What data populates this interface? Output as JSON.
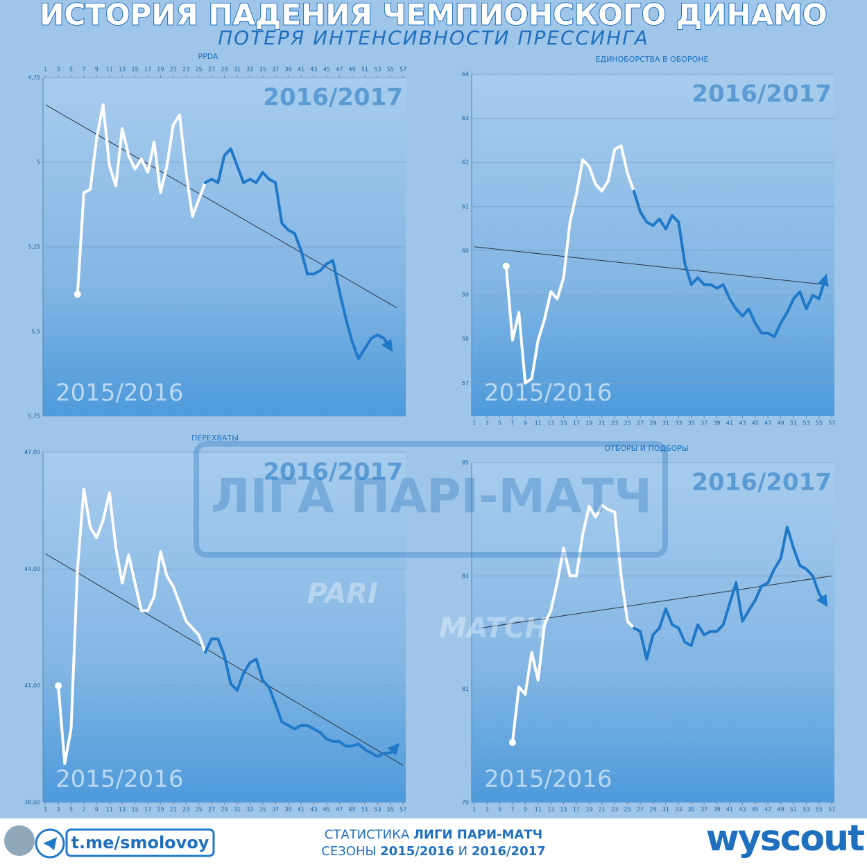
{
  "title": "ИСТОРИЯ ПАДЕНИЯ ЧЕМПИОНСКОГО ДИНАМО",
  "subtitle": "ПОТЕРЯ ИНТЕНСИВНОСТИ ПРЕССИНГА",
  "watermark": {
    "league": "ЛІГА ПАРІ-МАТЧ",
    "brand_top": "PARI",
    "brand_bottom": "MATCH"
  },
  "footer": {
    "handle": "t.me/smolovoy",
    "line1_lead": "СТАТИСТИКА",
    "line1_bold": "ЛИГИ ПАРИ-МАТЧ",
    "line2_lead": "СЕЗОНЫ",
    "line2_a": "2015/2016",
    "line2_and": "И",
    "line2_b": "2016/2017",
    "logo": "wyscout"
  },
  "chart_data": [
    {
      "type": "line",
      "title": "PPDA",
      "y_inverted": true,
      "xlim": [
        0.6,
        57.4
      ],
      "xticks": [
        1,
        3,
        5,
        7,
        9,
        11,
        13,
        15,
        17,
        19,
        21,
        23,
        25,
        27,
        29,
        31,
        33,
        35,
        37,
        39,
        41,
        43,
        45,
        47,
        49,
        51,
        53,
        55,
        57
      ],
      "ylim": [
        4.75,
        5.75
      ],
      "yticks": [
        {
          "value": 4.75,
          "label": "4,75"
        },
        5,
        {
          "value": 5.25,
          "label": "5,25"
        },
        {
          "value": 5.5,
          "label": "5,5"
        },
        {
          "value": 5.75,
          "label": "5,75"
        }
      ],
      "series": [
        {
          "name": "2015/2016",
          "color": "#ffffff",
          "x": [
            6,
            7,
            8,
            9,
            10,
            11,
            12,
            13,
            14,
            15,
            16,
            17,
            18,
            19,
            20,
            21,
            22,
            23,
            24,
            25,
            26
          ],
          "values": [
            5.39,
            5.09,
            5.08,
            4.93,
            4.83,
            5.01,
            5.07,
            4.9,
            4.98,
            5.02,
            4.99,
            5.03,
            4.94,
            5.09,
            5.01,
            4.89,
            4.86,
            5.03,
            5.16,
            5.11,
            5.06
          ]
        },
        {
          "name": "2016/2017",
          "color": "#1f78c8",
          "x": [
            26,
            27,
            28,
            29,
            30,
            31,
            32,
            33,
            34,
            35,
            36,
            37,
            38,
            39,
            40,
            41,
            42,
            43,
            44,
            45,
            46,
            47,
            48,
            49,
            50,
            51,
            52,
            53,
            54,
            55
          ],
          "values": [
            5.06,
            5.05,
            5.06,
            4.98,
            4.96,
            5.01,
            5.06,
            5.05,
            5.06,
            5.03,
            5.05,
            5.06,
            5.18,
            5.2,
            5.21,
            5.26,
            5.33,
            5.33,
            5.32,
            5.3,
            5.29,
            5.38,
            5.46,
            5.53,
            5.58,
            5.55,
            5.52,
            5.51,
            5.52,
            5.55
          ]
        }
      ],
      "trend": {
        "x": [
          1,
          56
        ],
        "values": [
          4.83,
          5.43
        ]
      }
    },
    {
      "type": "line",
      "title": "ЕДИНОБОРСТВА В ОБОРОНЕ",
      "xlim": [
        0.6,
        57.4
      ],
      "xticks": [
        1,
        3,
        5,
        7,
        9,
        11,
        13,
        15,
        17,
        19,
        21,
        23,
        25,
        27,
        29,
        31,
        33,
        35,
        37,
        39,
        41,
        43,
        45,
        47,
        49,
        51,
        53,
        55,
        57
      ],
      "ylim": [
        56.25,
        64
      ],
      "yticks": [
        57,
        58,
        59,
        60,
        61,
        62,
        63,
        64
      ],
      "series": [
        {
          "name": "2015/2016",
          "color": "#ffffff",
          "x": [
            6,
            7,
            8,
            9,
            10,
            11,
            12,
            13,
            14,
            15,
            16,
            17,
            18,
            19,
            20,
            21,
            22,
            23,
            24,
            25,
            26
          ],
          "values": [
            59.65,
            57.97,
            58.6,
            57.0,
            57.1,
            57.97,
            58.44,
            59.07,
            58.91,
            59.39,
            60.65,
            61.28,
            62.06,
            61.91,
            61.51,
            61.35,
            61.59,
            62.3,
            62.38,
            61.75,
            61.35
          ]
        },
        {
          "name": "2016/2017",
          "color": "#1f78c8",
          "x": [
            26,
            27,
            28,
            29,
            30,
            31,
            32,
            33,
            34,
            35,
            36,
            37,
            38,
            39,
            40,
            41,
            42,
            43,
            44,
            45,
            46,
            47,
            48,
            49,
            50,
            51,
            52,
            53,
            54,
            55,
            56
          ],
          "values": [
            61.35,
            60.88,
            60.65,
            60.57,
            60.72,
            60.49,
            60.8,
            60.65,
            59.7,
            59.23,
            59.39,
            59.23,
            59.23,
            59.15,
            59.23,
            58.91,
            58.68,
            58.52,
            58.68,
            58.36,
            58.13,
            58.13,
            58.05,
            58.36,
            58.6,
            58.91,
            59.07,
            58.68,
            58.99,
            58.91,
            59.39
          ]
        }
      ],
      "trend": {
        "x": [
          1,
          56
        ],
        "values": [
          60.09,
          59.23
        ]
      }
    },
    {
      "type": "line",
      "title": "ПЕРЕХВАТЫ",
      "xlim": [
        0.6,
        57.4
      ],
      "xticks": [
        1,
        3,
        5,
        7,
        9,
        11,
        13,
        15,
        17,
        19,
        21,
        23,
        25,
        27,
        29,
        31,
        33,
        35,
        37,
        39,
        41,
        43,
        45,
        47,
        49,
        51,
        53,
        55,
        57
      ],
      "ylim": [
        38,
        47
      ],
      "yticks": [
        {
          "value": 38,
          "label": "38,00"
        },
        {
          "value": 41,
          "label": "41,00"
        },
        {
          "value": 44,
          "label": "44,00"
        },
        {
          "value": 47,
          "label": "47,00"
        }
      ],
      "series": [
        {
          "name": "2015/2016",
          "color": "#ffffff",
          "x": [
            3,
            4,
            5,
            6,
            7,
            8,
            9,
            10,
            11,
            12,
            13,
            14,
            15,
            16,
            17,
            18,
            19,
            20,
            21,
            22,
            23,
            24,
            25,
            26
          ],
          "values": [
            41.0,
            39.0,
            39.9,
            44.0,
            46.05,
            45.07,
            44.8,
            45.25,
            45.96,
            44.54,
            43.64,
            44.36,
            43.64,
            42.93,
            42.93,
            43.29,
            44.45,
            43.82,
            43.55,
            43.11,
            42.66,
            42.48,
            42.3,
            41.86
          ]
        },
        {
          "name": "2016/2017",
          "color": "#1f78c8",
          "x": [
            26,
            27,
            28,
            29,
            30,
            31,
            32,
            33,
            34,
            35,
            36,
            37,
            38,
            39,
            40,
            41,
            42,
            43,
            44,
            45,
            46,
            47,
            48,
            49,
            50,
            51,
            52,
            53,
            54,
            55,
            56
          ],
          "values": [
            41.86,
            42.2,
            42.2,
            41.77,
            41.05,
            40.88,
            41.32,
            41.59,
            41.68,
            41.14,
            40.96,
            40.52,
            40.07,
            39.98,
            39.89,
            39.98,
            39.98,
            39.89,
            39.8,
            39.63,
            39.57,
            39.57,
            39.45,
            39.45,
            39.5,
            39.36,
            39.27,
            39.18,
            39.27,
            39.27,
            39.45
          ]
        }
      ],
      "trend": {
        "x": [
          1,
          57
        ],
        "values": [
          44.39,
          38.95
        ]
      }
    },
    {
      "type": "line",
      "title": "ОТБОРЫ И ПОДБОРЫ",
      "xlim": [
        0.6,
        57.4
      ],
      "xticks": [
        1,
        3,
        5,
        7,
        9,
        11,
        13,
        15,
        17,
        19,
        21,
        23,
        25,
        27,
        29,
        31,
        33,
        35,
        37,
        39,
        41,
        43,
        45,
        47,
        49,
        51,
        53,
        55,
        57
      ],
      "ylim": [
        79,
        85
      ],
      "yticks": [
        79,
        81,
        83,
        85
      ],
      "series": [
        {
          "name": "2015/2016",
          "color": "#ffffff",
          "x": [
            7,
            8,
            9,
            10,
            11,
            12,
            13,
            14,
            15,
            16,
            17,
            18,
            19,
            20,
            21,
            22,
            23,
            24,
            25,
            26
          ],
          "values": [
            80.06,
            81.04,
            80.91,
            81.65,
            81.16,
            82.14,
            82.39,
            82.88,
            83.49,
            83.0,
            83.0,
            83.74,
            84.23,
            84.04,
            84.25,
            84.17,
            84.13,
            83.0,
            82.2,
            82.08
          ]
        },
        {
          "name": "2016/2017",
          "color": "#1f78c8",
          "x": [
            26,
            27,
            28,
            29,
            30,
            31,
            32,
            33,
            34,
            35,
            36,
            37,
            38,
            39,
            40,
            41,
            42,
            43,
            44,
            45,
            46,
            47,
            48,
            49,
            50,
            51,
            52,
            53,
            54,
            55,
            56
          ],
          "values": [
            82.08,
            82.02,
            81.53,
            81.96,
            82.08,
            82.42,
            82.14,
            82.08,
            81.83,
            81.77,
            82.14,
            81.96,
            82.02,
            82.02,
            82.14,
            82.51,
            82.88,
            82.2,
            82.39,
            82.57,
            82.82,
            82.88,
            83.12,
            83.31,
            83.86,
            83.49,
            83.18,
            83.12,
            83.0,
            82.69,
            82.51
          ]
        }
      ],
      "trend": {
        "x": [
          2,
          57
        ],
        "values": [
          82.08,
          83.0
        ]
      }
    }
  ]
}
